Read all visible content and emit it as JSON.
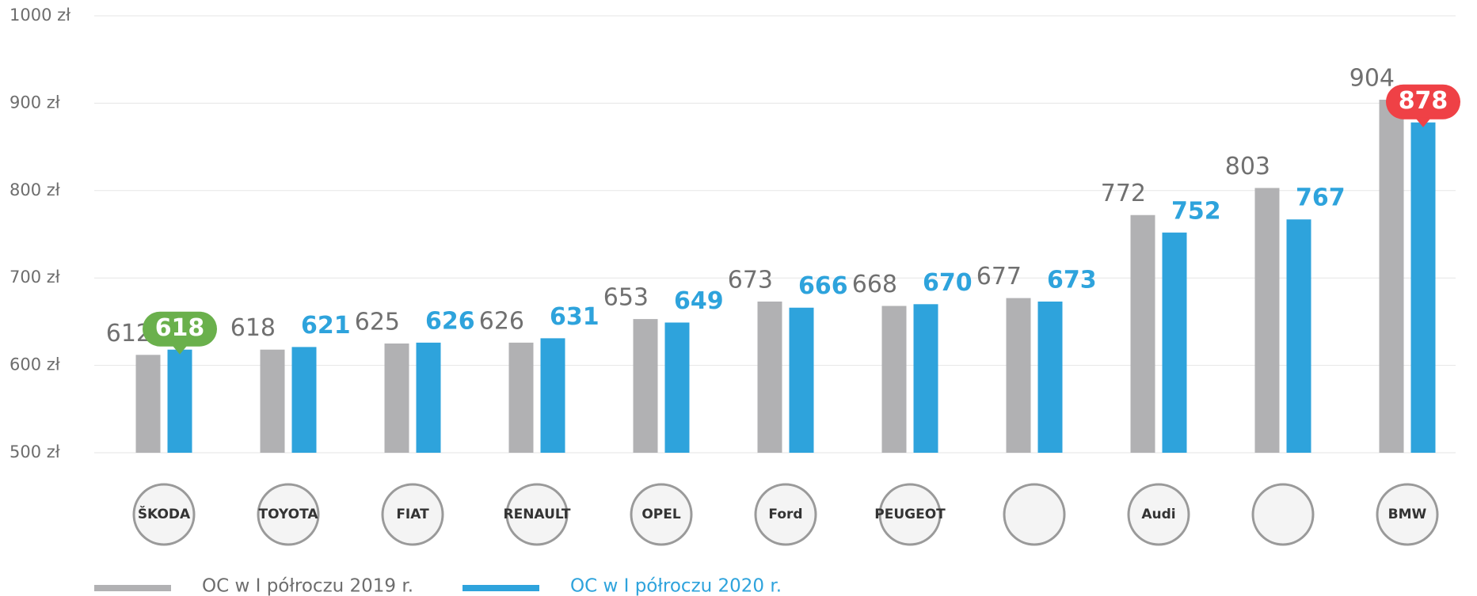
{
  "chart_data": {
    "type": "bar",
    "categories": [
      "ŠKODA",
      "TOYOTA",
      "FIAT",
      "RENAULT",
      "OPEL",
      "Ford",
      "PEUGEOT",
      null,
      "Audi",
      null,
      "BMW"
    ],
    "series": [
      {
        "name": "OC w I półroczu 2019 r.",
        "color": "#b1b1b3",
        "values": [
          612,
          618,
          625,
          626,
          653,
          673,
          668,
          677,
          772,
          803,
          904
        ]
      },
      {
        "name": "OC w I półroczu 2020 r.",
        "color": "#2ea3dc",
        "values": [
          618,
          621,
          626,
          631,
          649,
          666,
          670,
          673,
          752,
          767,
          878
        ],
        "label_backgrounds": [
          "#6ab04c",
          null,
          null,
          null,
          null,
          null,
          null,
          null,
          null,
          null,
          "#ef4146"
        ]
      }
    ],
    "ylim": [
      500,
      1000
    ],
    "yticks": [
      {
        "value": 500,
        "label": "500 zł"
      },
      {
        "value": 600,
        "label": "600 zł"
      },
      {
        "value": 700,
        "label": "700 zł"
      },
      {
        "value": 800,
        "label": "800 zł"
      },
      {
        "value": 900,
        "label": "900 zł"
      },
      {
        "value": 1000,
        "label": "1000 zł"
      }
    ],
    "grid": true,
    "legend": "bottom"
  }
}
